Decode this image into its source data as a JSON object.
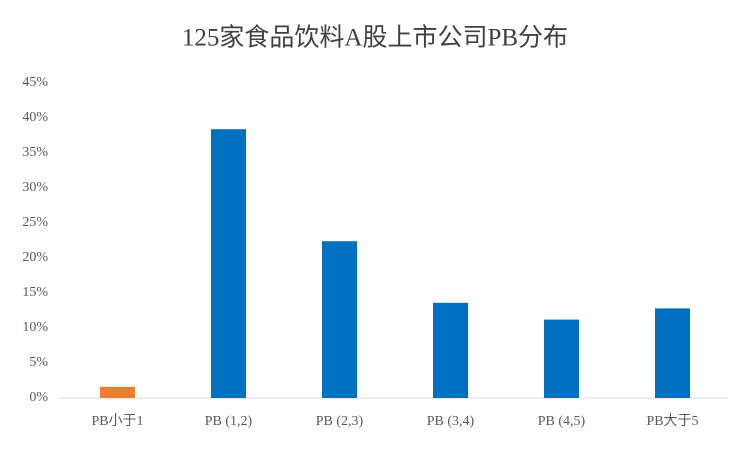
{
  "chart_data": {
    "type": "bar",
    "title": "125家食品饮料A股上市公司PB分布",
    "categories": [
      "PB小于1",
      "PB (1,2)",
      "PB (2,3)",
      "PB (3,4)",
      "PB (4,5)",
      "PB大于5"
    ],
    "values": [
      1.6,
      38.4,
      22.4,
      13.6,
      11.2,
      12.8
    ],
    "colors": [
      "#ed7d31",
      "#0070c0",
      "#0070c0",
      "#0070c0",
      "#0070c0",
      "#0070c0"
    ],
    "ylim": [
      0,
      45
    ],
    "yticks": [
      {
        "value": 0,
        "label": "0%"
      },
      {
        "value": 5,
        "label": "5%"
      },
      {
        "value": 10,
        "label": "10%"
      },
      {
        "value": 15,
        "label": "15%"
      },
      {
        "value": 20,
        "label": "20%"
      },
      {
        "value": 25,
        "label": "25%"
      },
      {
        "value": 30,
        "label": "30%"
      },
      {
        "value": 35,
        "label": "35%"
      },
      {
        "value": 40,
        "label": "40%"
      },
      {
        "value": 45,
        "label": "45%"
      }
    ],
    "grid": false
  }
}
